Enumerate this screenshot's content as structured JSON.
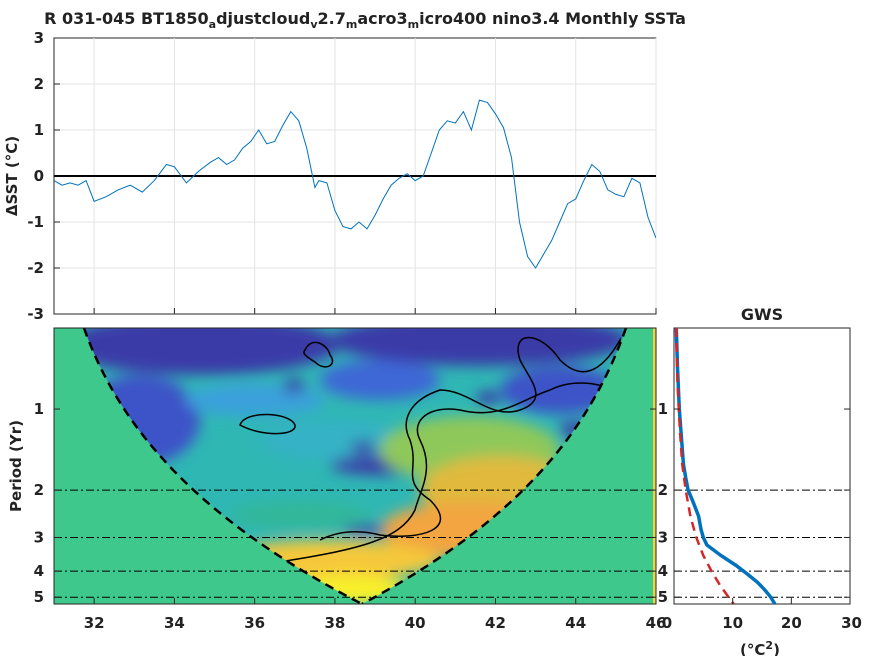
{
  "chart_data": [
    {
      "type": "line",
      "title_parts": [
        {
          "text": "R 031-045 BT1850",
          "sub": false
        },
        {
          "text": "a",
          "sub": true
        },
        {
          "text": "djustcloud",
          "sub": false
        },
        {
          "text": "v",
          "sub": true
        },
        {
          "text": "2.7",
          "sub": false
        },
        {
          "text": "m",
          "sub": true
        },
        {
          "text": "acro3",
          "sub": false
        },
        {
          "text": "m",
          "sub": true
        },
        {
          "text": "icro400 nino3.4 Monthly SSTa",
          "sub": false
        }
      ],
      "ylabel": "ΔSST (°C)",
      "xlim": [
        31,
        46
      ],
      "ylim": [
        -3,
        3
      ],
      "yticks": [
        -3,
        -2,
        -1,
        0,
        1,
        2,
        3
      ],
      "reference_line": 0,
      "series": [
        {
          "color": "#0072bd",
          "x": [
            31.0,
            31.2,
            31.4,
            31.6,
            31.8,
            32.0,
            32.3,
            32.6,
            32.9,
            33.2,
            33.5,
            33.8,
            34.0,
            34.3,
            34.6,
            34.9,
            35.1,
            35.3,
            35.5,
            35.7,
            35.9,
            36.1,
            36.3,
            36.5,
            36.7,
            36.9,
            37.1,
            37.3,
            37.5,
            37.6,
            37.8,
            38.0,
            38.2,
            38.4,
            38.6,
            38.8,
            39.0,
            39.2,
            39.4,
            39.6,
            39.8,
            40.0,
            40.2,
            40.4,
            40.6,
            40.8,
            41.0,
            41.2,
            41.4,
            41.6,
            41.8,
            42.0,
            42.2,
            42.4,
            42.6,
            42.8,
            43.0,
            43.2,
            43.4,
            43.6,
            43.8,
            44.0,
            44.2,
            44.4,
            44.6,
            44.8,
            45.0,
            45.2,
            45.4,
            45.6,
            45.8,
            46.0
          ],
          "y": [
            -0.1,
            -0.2,
            -0.15,
            -0.2,
            -0.1,
            -0.55,
            -0.45,
            -0.3,
            -0.2,
            -0.35,
            -0.1,
            0.25,
            0.2,
            -0.15,
            0.1,
            0.3,
            0.4,
            0.25,
            0.35,
            0.6,
            0.75,
            1.0,
            0.7,
            0.75,
            1.1,
            1.4,
            1.2,
            0.6,
            -0.25,
            -0.1,
            -0.15,
            -0.75,
            -1.1,
            -1.15,
            -1.0,
            -1.15,
            -0.85,
            -0.5,
            -0.2,
            -0.05,
            0.05,
            -0.1,
            0.0,
            0.5,
            1.0,
            1.2,
            1.15,
            1.4,
            1.0,
            1.65,
            1.6,
            1.35,
            1.05,
            0.4,
            -1.0,
            -1.75,
            -2.0,
            -1.7,
            -1.4,
            -1.0,
            -0.6,
            -0.5,
            -0.1,
            0.25,
            0.1,
            -0.3,
            -0.4,
            -0.45,
            -0.05,
            -0.15,
            -0.9,
            -1.35
          ]
        }
      ]
    },
    {
      "type": "heatmap",
      "ylabel": "Period (Yr)",
      "xlim": [
        31,
        46
      ],
      "xticks": [
        32,
        34,
        36,
        38,
        40,
        42,
        44,
        46
      ],
      "yscale": "log",
      "ylim": [
        0.5,
        5.3
      ],
      "yticks": [
        1,
        2,
        3,
        4,
        5
      ],
      "reference_periods": [
        2,
        3,
        4,
        5
      ]
    },
    {
      "type": "line",
      "title": "GWS",
      "xlabel_base": "(°C",
      "xlabel_sup": "2",
      "xlabel_end": ")",
      "xlim": [
        0,
        30
      ],
      "xticks": [
        10,
        20,
        30
      ],
      "xtick_zero": "0",
      "yscale": "log",
      "ylim": [
        0.5,
        5.3
      ],
      "yticks": [
        1,
        2,
        3,
        4,
        5
      ],
      "series": [
        {
          "color": "#0072bd",
          "period": [
            0.5,
            0.7,
            1.0,
            1.3,
            1.6,
            1.8,
            2.0,
            2.2,
            2.5,
            2.8,
            3.0,
            3.2,
            3.5,
            3.8,
            4.1,
            4.4,
            4.7,
            5.0,
            5.3
          ],
          "power": [
            0.4,
            0.6,
            0.9,
            1.3,
            1.6,
            2.0,
            2.4,
            3.2,
            4.2,
            4.6,
            5.0,
            5.6,
            8.0,
            10.5,
            12.5,
            14.2,
            15.5,
            16.5,
            17.2
          ]
        },
        {
          "color": "#d62728",
          "dashed": true,
          "period": [
            0.5,
            0.8,
            1.2,
            1.6,
            2.0,
            2.5,
            3.0,
            3.5,
            4.0,
            4.5,
            5.0,
            5.3
          ],
          "power": [
            0.4,
            0.6,
            1.0,
            1.4,
            2.0,
            2.8,
            3.8,
            5.0,
            6.4,
            7.8,
            9.3,
            10.2
          ]
        }
      ]
    }
  ]
}
